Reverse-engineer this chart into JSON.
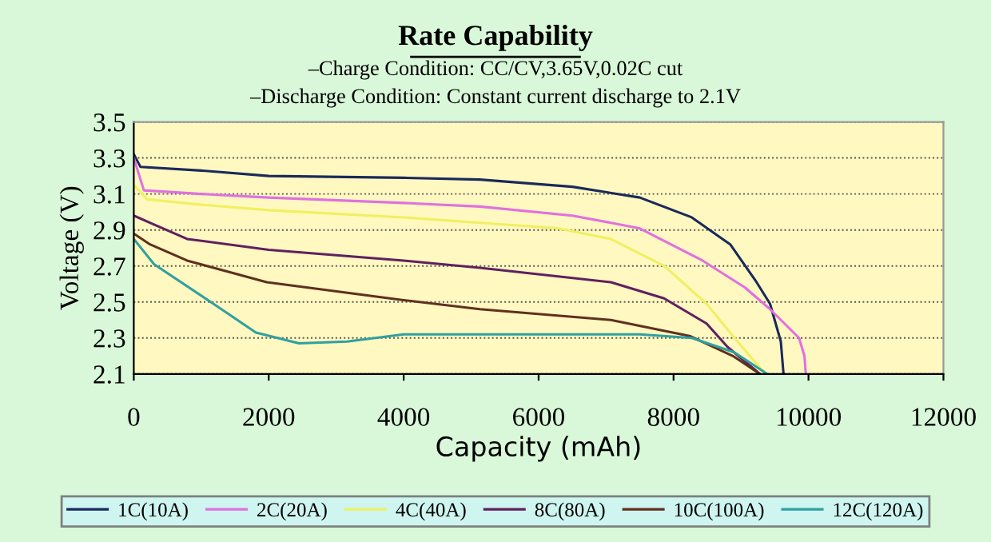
{
  "chart_data": {
    "type": "line",
    "title": "Rate Capability",
    "subtitle": "–Charge Condition: CC/CV,3.65V,0.02C cut\n–Discharge Condition: Constant current discharge to 2.1V",
    "xlabel": "Capacity (mAh)",
    "ylabel": "Voltage (V)",
    "xlim": [
      0,
      12000
    ],
    "xticks": [
      0,
      2000,
      4000,
      6000,
      8000,
      10000,
      12000
    ],
    "ylim": [
      2.1,
      3.5
    ],
    "yticks": [
      2.1,
      2.3,
      2.5,
      2.7,
      2.9,
      3.1,
      3.3,
      3.5
    ],
    "grid": "y",
    "legend": "bottom",
    "marker": "none",
    "line_style": "solid",
    "series": [
      {
        "name": "1C(10A)",
        "color": "#1a2a5a",
        "x": [
          0,
          100,
          1000,
          2000,
          4000,
          5130,
          6500,
          7500,
          8270,
          8840,
          9230,
          9430,
          9590,
          9630
        ],
        "values": [
          3.32,
          3.25,
          3.23,
          3.2,
          3.19,
          3.18,
          3.14,
          3.08,
          2.97,
          2.82,
          2.61,
          2.49,
          2.28,
          2.1
        ]
      },
      {
        "name": "2C(20A)",
        "color": "#e070e0",
        "x": [
          0,
          150,
          1000,
          2000,
          4000,
          5130,
          6500,
          7490,
          8430,
          9060,
          9430,
          9860,
          9940,
          9960
        ],
        "values": [
          3.3,
          3.12,
          3.1,
          3.08,
          3.05,
          3.03,
          2.98,
          2.91,
          2.73,
          2.58,
          2.46,
          2.3,
          2.2,
          2.1
        ]
      },
      {
        "name": "4C(40A)",
        "color": "#f0f060",
        "x": [
          0,
          200,
          1000,
          2000,
          4000,
          5130,
          6280,
          7070,
          7860,
          8490,
          8880,
          9200,
          9360
        ],
        "values": [
          3.15,
          3.07,
          3.04,
          3.01,
          2.97,
          2.94,
          2.91,
          2.85,
          2.7,
          2.49,
          2.31,
          2.17,
          2.1
        ]
      },
      {
        "name": "8C(80A)",
        "color": "#602060",
        "x": [
          0,
          300,
          790,
          2000,
          4000,
          5130,
          7070,
          7860,
          8490,
          8800,
          9280
        ],
        "values": [
          2.98,
          2.93,
          2.85,
          2.79,
          2.73,
          2.69,
          2.61,
          2.52,
          2.38,
          2.25,
          2.1
        ]
      },
      {
        "name": "10C(100A)",
        "color": "#603020",
        "x": [
          0,
          240,
          790,
          1970,
          4000,
          5130,
          7070,
          8250,
          8880,
          9280
        ],
        "values": [
          2.88,
          2.82,
          2.73,
          2.61,
          2.51,
          2.46,
          2.4,
          2.31,
          2.2,
          2.1
        ]
      },
      {
        "name": "12C(120A)",
        "color": "#30a0a0",
        "x": [
          0,
          300,
          1180,
          1810,
          2450,
          3160,
          4000,
          5600,
          7500,
          8270,
          8900,
          9390
        ],
        "values": [
          2.85,
          2.71,
          2.49,
          2.33,
          2.27,
          2.28,
          2.32,
          2.32,
          2.32,
          2.3,
          2.22,
          2.1
        ]
      }
    ]
  }
}
